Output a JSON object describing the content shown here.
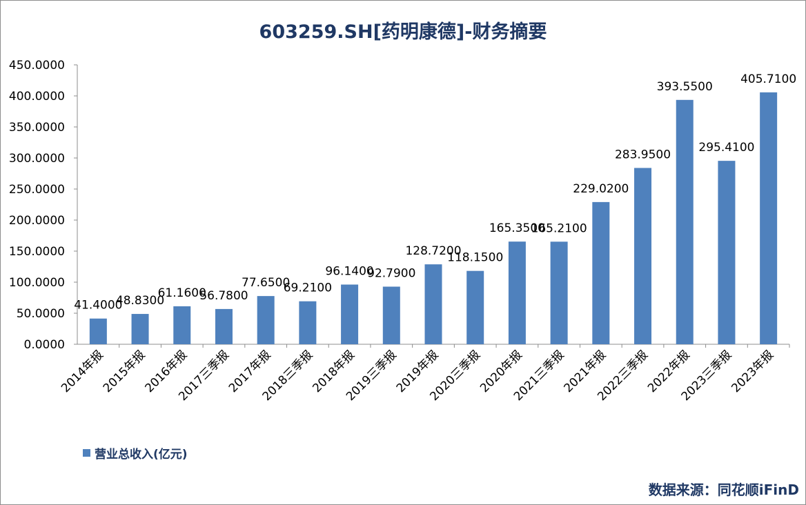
{
  "chart_data": {
    "type": "bar",
    "title": "603259.SH[药明康德]-财务摘要",
    "categories": [
      "2014年报",
      "2015年报",
      "2016年报",
      "2017三季报",
      "2017年报",
      "2018三季报",
      "2018年报",
      "2019三季报",
      "2019年报",
      "2020三季报",
      "2020年报",
      "2021三季报",
      "2021年报",
      "2022三季报",
      "2022年报",
      "2023三季报",
      "2023年报"
    ],
    "series": [
      {
        "name": "营业总收入(亿元)",
        "values": [
          41.4,
          48.83,
          61.16,
          56.78,
          77.65,
          69.21,
          96.14,
          92.79,
          128.72,
          118.15,
          165.35,
          165.21,
          229.02,
          283.95,
          393.55,
          295.41,
          405.71
        ],
        "labels": [
          "41.4000",
          "48.8300",
          "61.1600",
          "56.7800",
          "77.6500",
          "69.2100",
          "96.1400",
          "92.7900",
          "128.7200",
          "118.1500",
          "165.3500",
          "165.2100",
          "229.0200",
          "283.9500",
          "393.5500",
          "295.4100",
          "405.7100"
        ]
      }
    ],
    "ylim": [
      0,
      450
    ],
    "yticks": [
      0,
      50,
      100,
      150,
      200,
      250,
      300,
      350,
      400,
      450
    ],
    "yticklabels": [
      "0.0000",
      "50.0000",
      "100.0000",
      "150.0000",
      "200.0000",
      "250.0000",
      "300.0000",
      "350.0000",
      "400.0000",
      "450.0000"
    ],
    "xlabel": "",
    "ylabel": "",
    "grid": false,
    "legend_position": "bottom-left",
    "bar_color": "#4f81bd"
  },
  "source_text": "数据来源：同花顺iFinD"
}
